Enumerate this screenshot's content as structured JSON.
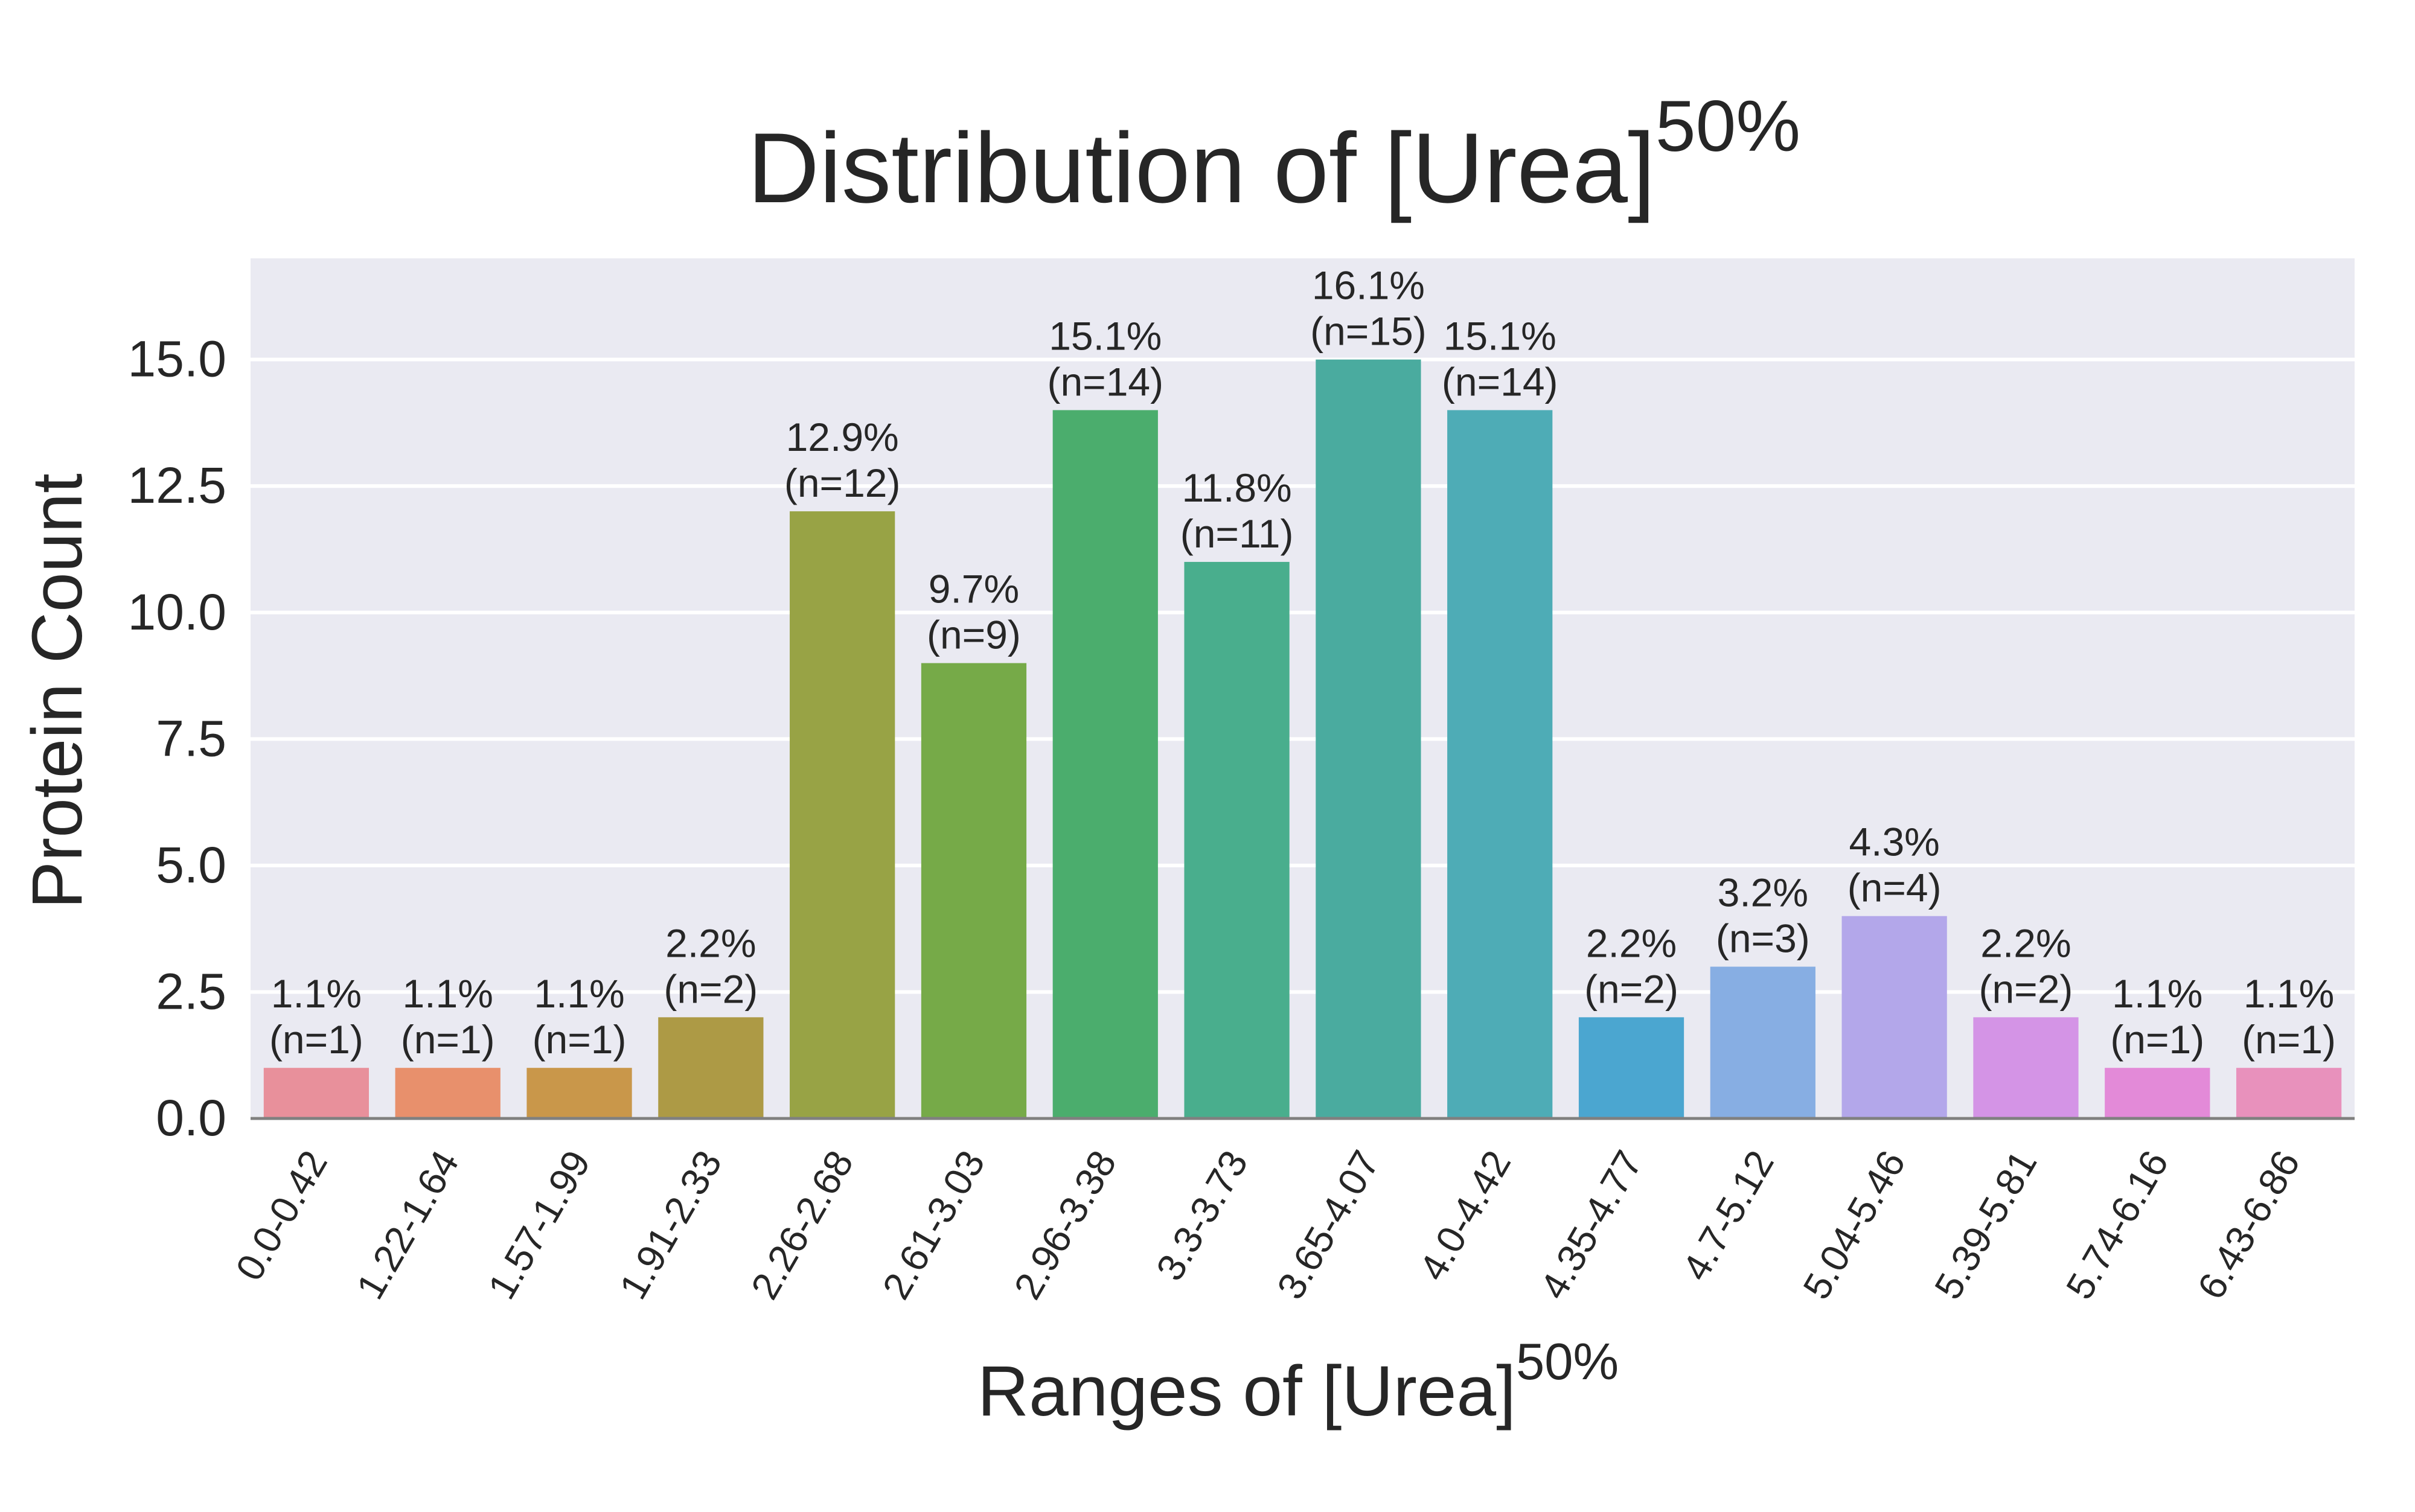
{
  "chart_data": {
    "type": "bar",
    "title": "Distribution of [Urea]",
    "title_superscript": "50%",
    "xlabel": "Ranges of [Urea]",
    "xlabel_superscript": "50%",
    "ylabel": "Protein Count",
    "ylim": [
      0,
      17
    ],
    "yticks": [
      "0.0",
      "2.5",
      "5.0",
      "7.5",
      "10.0",
      "12.5",
      "15.0"
    ],
    "ytick_values": [
      0,
      2.5,
      5,
      7.5,
      10,
      12.5,
      15
    ],
    "grid": true,
    "categories": [
      "0.0-0.42",
      "1.22-1.64",
      "1.57-1.99",
      "1.91-2.33",
      "2.26-2.68",
      "2.61-3.03",
      "2.96-3.38",
      "3.3-3.73",
      "3.65-4.07",
      "4.0-4.42",
      "4.35-4.77",
      "4.7-5.12",
      "5.04-5.46",
      "5.39-5.81",
      "5.74-6.16",
      "6.43-6.86"
    ],
    "values": [
      1,
      1,
      1,
      2,
      12,
      9,
      14,
      11,
      15,
      14,
      2,
      3,
      4,
      2,
      1,
      1
    ],
    "percent_labels": [
      "1.1%",
      "1.1%",
      "1.1%",
      "2.2%",
      "12.9%",
      "9.7%",
      "15.1%",
      "11.8%",
      "16.1%",
      "15.1%",
      "2.2%",
      "3.2%",
      "4.3%",
      "2.2%",
      "1.1%",
      "1.1%"
    ],
    "count_labels": [
      "(n=1)",
      "(n=1)",
      "(n=1)",
      "(n=2)",
      "(n=12)",
      "(n=9)",
      "(n=14)",
      "(n=11)",
      "(n=15)",
      "(n=14)",
      "(n=2)",
      "(n=3)",
      "(n=4)",
      "(n=2)",
      "(n=1)",
      "(n=1)"
    ],
    "colors": [
      "#e8909b",
      "#e8906c",
      "#c9974a",
      "#ad9a45",
      "#98a345",
      "#76aa48",
      "#4bad6d",
      "#49ae8d",
      "#4aab9f",
      "#4eacb6",
      "#4ba6d0",
      "#87aee3",
      "#b3a7ea",
      "#d494e6",
      "#e38ad8",
      "#e891bc"
    ],
    "plot_background": "#eaeaf2",
    "grid_color": "#ffffff"
  }
}
